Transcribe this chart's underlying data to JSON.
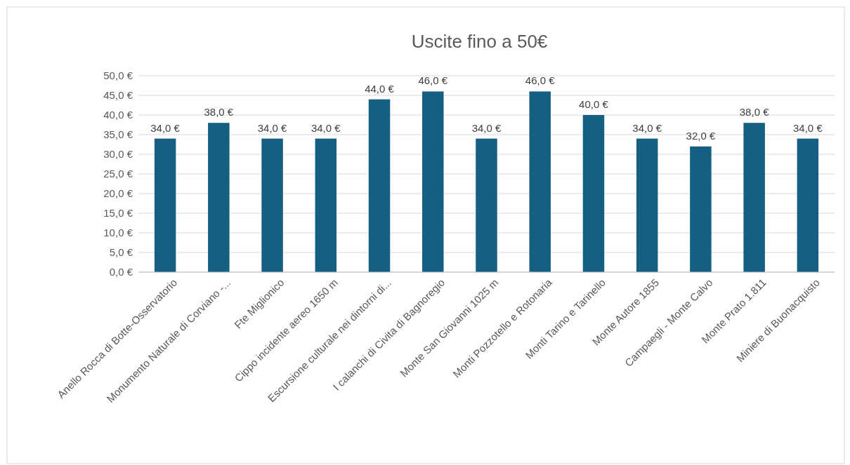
{
  "chart_data": {
    "type": "bar",
    "title": "Uscite fino a 50€",
    "categories": [
      "Anello Rocca di Botte-Osservatorio",
      "Monumento Naturale di Corviano -...",
      "Fte Miglionico",
      "Cippo incidente aereo 1650 m",
      "Escursione culturale nei dintorni di...",
      "I calanchi di Civita di Bagnoregio",
      "Monte San Giovanni 1025 m",
      "Monti Pozzotello e Rotonaria",
      "Monti Tarino e Tarinello",
      "Monte Autore 1855",
      "Campaegli - Monte Calvo",
      "Monte Prato 1.811",
      "Miniere di Buonacquisto"
    ],
    "values": [
      34,
      38,
      34,
      34,
      44,
      46,
      34,
      46,
      40,
      34,
      32,
      38,
      34
    ],
    "value_labels": [
      "34,0 €",
      "38,0 €",
      "34,0 €",
      "34,0 €",
      "44,0 €",
      "46,0 €",
      "34,0 €",
      "46,0 €",
      "40,0 €",
      "34,0 €",
      "32,0 €",
      "38,0 €",
      "34,0 €"
    ],
    "color": "#156082",
    "ylim": [
      0,
      50
    ],
    "yticks": [
      {
        "value": 0,
        "label": "0,0 €"
      },
      {
        "value": 5,
        "label": "5,0 €"
      },
      {
        "value": 10,
        "label": "10,0 €"
      },
      {
        "value": 15,
        "label": "15,0 €"
      },
      {
        "value": 20,
        "label": "20,0 €"
      },
      {
        "value": 25,
        "label": "25,0 €"
      },
      {
        "value": 30,
        "label": "30,0 €"
      },
      {
        "value": 35,
        "label": "35,0 €"
      },
      {
        "value": 40,
        "label": "40,0 €"
      },
      {
        "value": 45,
        "label": "45,0 €"
      },
      {
        "value": 50,
        "label": "50,0 €"
      }
    ],
    "grid": "y"
  }
}
